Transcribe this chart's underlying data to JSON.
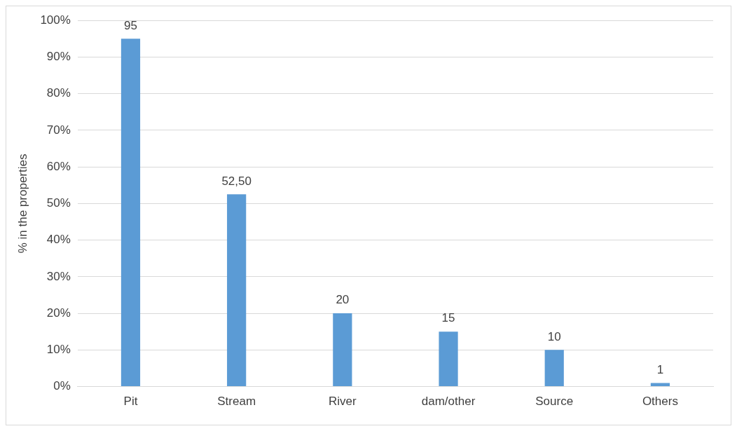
{
  "chart_data": {
    "type": "bar",
    "ylabel": "% in the properties",
    "categories": [
      "Pit",
      "Stream",
      "River",
      "dam/other",
      "Source",
      "Others"
    ],
    "values": [
      95,
      52.5,
      20,
      15,
      10,
      1
    ],
    "value_labels": [
      "95",
      "52,50",
      "20",
      "15",
      "10",
      "1"
    ],
    "color": "#5b9bd5",
    "ylim": [
      0,
      100
    ],
    "yticks": [
      {
        "value": 0,
        "label": "0%"
      },
      {
        "value": 10,
        "label": "10%"
      },
      {
        "value": 20,
        "label": "20%"
      },
      {
        "value": 30,
        "label": "30%"
      },
      {
        "value": 40,
        "label": "40%"
      },
      {
        "value": 50,
        "label": "50%"
      },
      {
        "value": 60,
        "label": "60%"
      },
      {
        "value": 70,
        "label": "70%"
      },
      {
        "value": 80,
        "label": "80%"
      },
      {
        "value": 90,
        "label": "90%"
      },
      {
        "value": 100,
        "label": "100%"
      }
    ],
    "grid": "y"
  }
}
